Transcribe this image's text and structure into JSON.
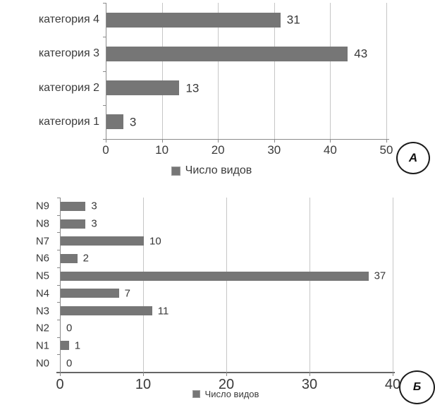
{
  "figure": {
    "bar_color": "#767676",
    "text_color": "#383838",
    "legend_label": "Число видов"
  },
  "chart_data": [
    {
      "type": "bar",
      "orientation": "horizontal",
      "panel_label": "А",
      "categories": [
        "категория 4",
        "категория 3",
        "категория 2",
        "категория 1"
      ],
      "values": [
        31,
        43,
        13,
        3
      ],
      "xlim": [
        0,
        50
      ],
      "xticks": [
        0,
        10,
        20,
        30,
        40,
        50
      ],
      "legend_label": "Число видов",
      "legend_position": "bottom-center",
      "grid": "vertical",
      "data_labels": true
    },
    {
      "type": "bar",
      "orientation": "horizontal",
      "panel_label": "Б",
      "categories": [
        "N9",
        "N8",
        "N7",
        "N6",
        "N5",
        "N4",
        "N3",
        "N2",
        "N1",
        "N0"
      ],
      "values": [
        3,
        3,
        10,
        2,
        37,
        7,
        11,
        0,
        1,
        0
      ],
      "xlim": [
        0,
        40
      ],
      "xticks": [
        0,
        10,
        20,
        30,
        40
      ],
      "legend_label": "Число видов",
      "legend_position": "bottom-center",
      "grid": "vertical",
      "data_labels": true
    }
  ]
}
